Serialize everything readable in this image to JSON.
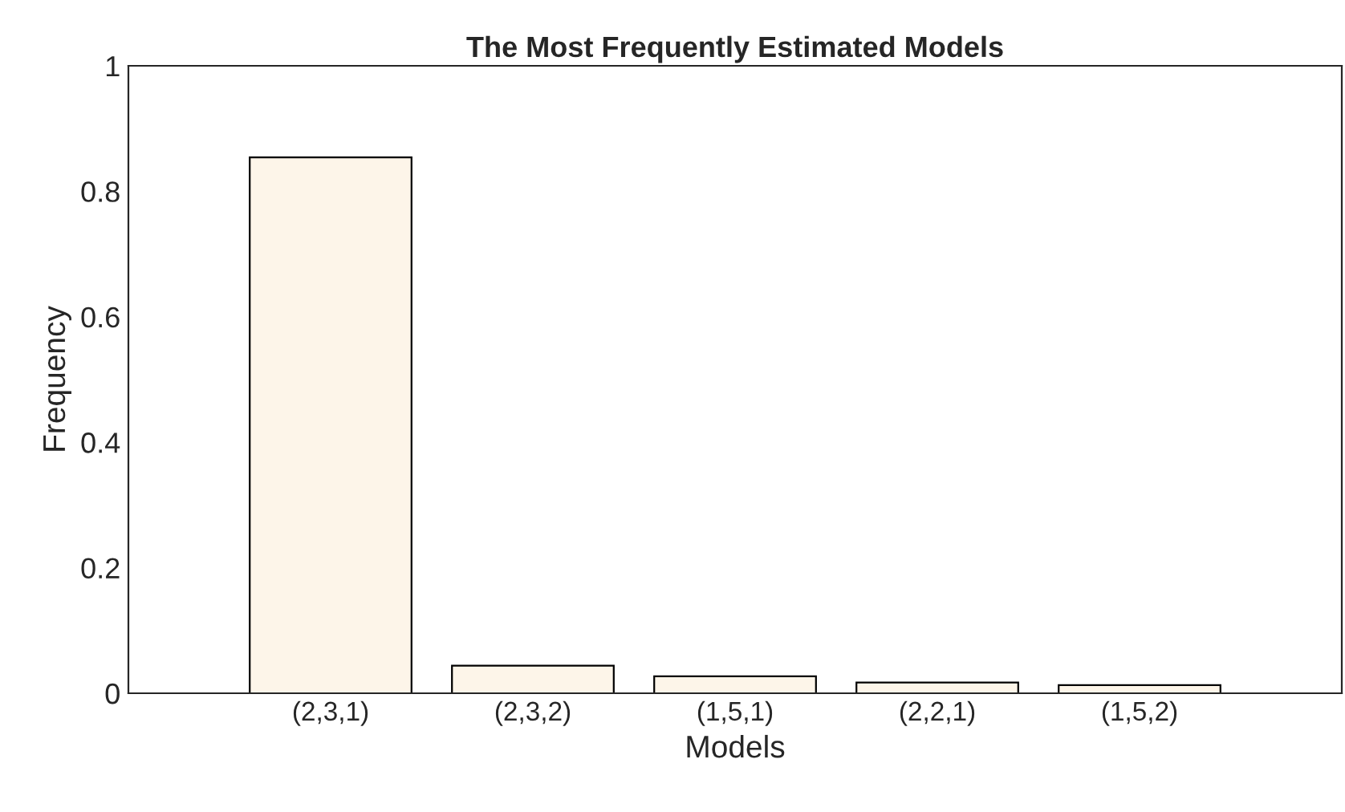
{
  "chart_data": {
    "type": "bar",
    "title": "The Most Frequently Estimated Models",
    "xlabel": "Models",
    "ylabel": "Frequency",
    "categories": [
      "(2,3,1)",
      "(2,3,2)",
      "(1,5,1)",
      "(2,2,1)",
      "(1,5,2)"
    ],
    "values": [
      0.854,
      0.044,
      0.027,
      0.017,
      0.013
    ],
    "color": "#fdf5e9",
    "ylim": [
      0,
      1
    ],
    "yticks": [
      0,
      {
        "value": 0.2,
        "label": "0.2"
      },
      {
        "value": 0.4,
        "label": "0.4"
      },
      {
        "value": 0.6,
        "label": "0.6"
      },
      {
        "value": 0.8,
        "label": "0.8"
      },
      1
    ],
    "grid": false
  }
}
